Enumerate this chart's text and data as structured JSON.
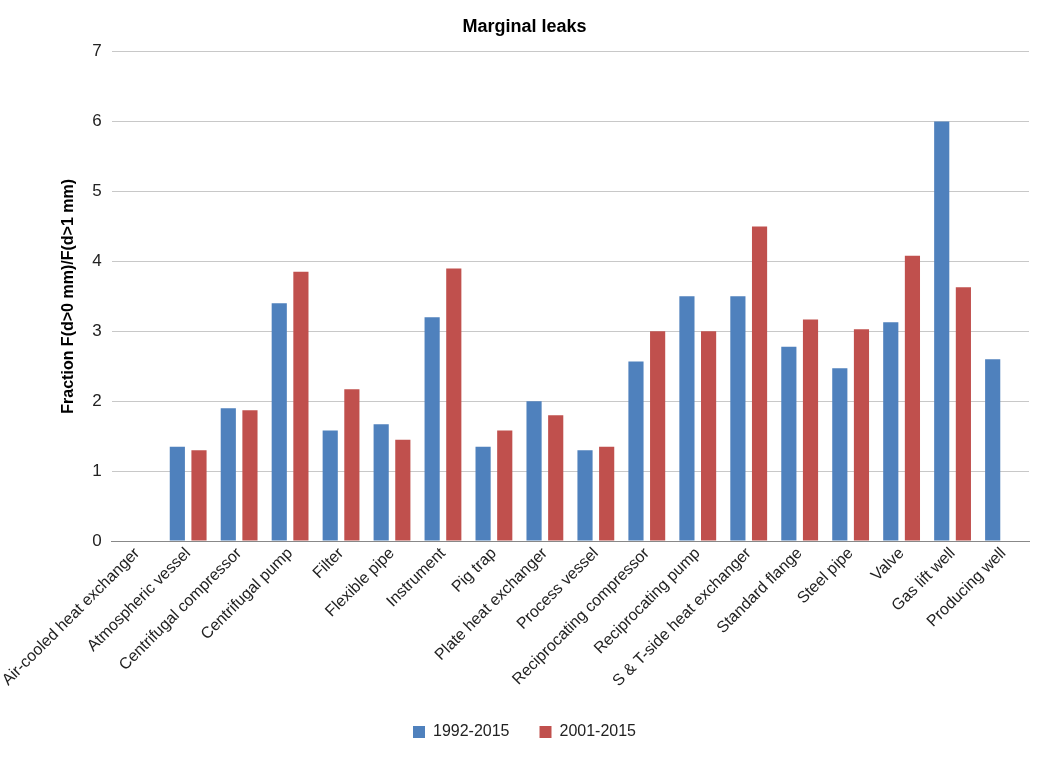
{
  "chart_data": {
    "type": "bar",
    "title": "Marginal leaks",
    "ylabel": "Fraction F(d>0 mm)/F(d>1 mm)",
    "categories": [
      "Air-cooled heat exchanger",
      "Atmospheric vessel",
      "Centrifugal compressor",
      "Centrifugal pump",
      "Filter",
      "Flexible pipe",
      "Instrument",
      "Pig trap",
      "Plate heat exchanger",
      "Process vessel",
      "Reciprocating compressor",
      "Reciprocating pump",
      "S & T-side heat exchanger",
      "Standard flange",
      "Steel pipe",
      "Valve",
      "Gas lift well",
      "Producing well"
    ],
    "series": [
      {
        "name": "1992-2015",
        "color": "#4f81bd",
        "values": [
          null,
          1.35,
          1.9,
          3.4,
          1.58,
          1.67,
          3.2,
          1.35,
          2.0,
          1.3,
          2.57,
          3.5,
          3.5,
          2.78,
          2.47,
          3.13,
          6.0,
          2.6
        ]
      },
      {
        "name": "2001-2015",
        "color": "#c0504d",
        "values": [
          null,
          1.3,
          1.87,
          3.85,
          2.17,
          1.45,
          3.9,
          1.58,
          1.8,
          1.35,
          3.0,
          3.0,
          4.5,
          3.17,
          3.03,
          4.08,
          3.63,
          null
        ]
      }
    ],
    "ylim": [
      0,
      7
    ],
    "yticks": [
      0,
      1,
      2,
      3,
      4,
      5,
      6,
      7
    ],
    "grid": "y",
    "legend": "bottom"
  }
}
